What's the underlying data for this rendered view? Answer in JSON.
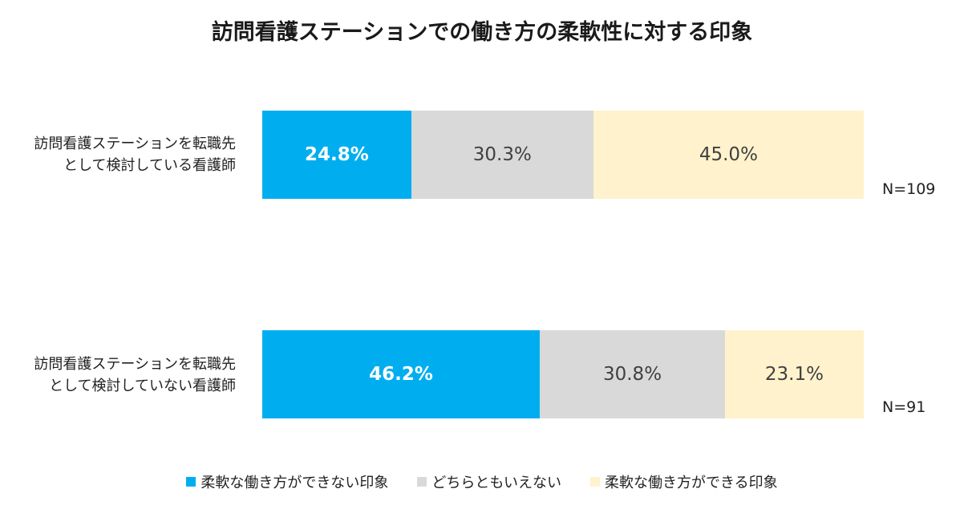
{
  "chart_data": {
    "type": "bar",
    "orientation": "horizontal",
    "stacked": true,
    "title": "訪問看護ステーションでの働き方の柔軟性に対する印象",
    "categories": [
      {
        "label_lines": [
          "訪問看護ステーションを転職先",
          "として検討している看護師"
        ],
        "n_label": "N=109"
      },
      {
        "label_lines": [
          "訪問看護ステーションを転職先",
          "として検討していない看護師"
        ],
        "n_label": "N=91"
      }
    ],
    "series": [
      {
        "name": "柔軟な働き方ができない印象",
        "color": "#00AEEF",
        "values": [
          24.8,
          46.2
        ],
        "labels": [
          "24.8%",
          "46.2%"
        ]
      },
      {
        "name": "どちらともいえない",
        "color": "#D9D9D9",
        "values": [
          30.3,
          30.8
        ],
        "labels": [
          "30.3%",
          "30.8%"
        ]
      },
      {
        "name": "柔軟な働き方ができる印象",
        "color": "#FFF2CC",
        "values": [
          45.0,
          23.1
        ],
        "labels": [
          "45.0%",
          "23.1%"
        ]
      }
    ],
    "xlim": [
      0,
      100
    ],
    "legend_position": "bottom"
  }
}
